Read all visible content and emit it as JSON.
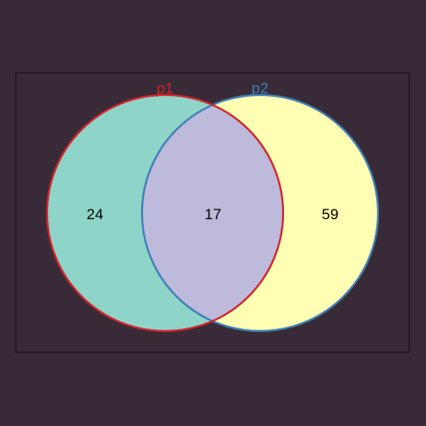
{
  "colors": {
    "background": "#382b37",
    "frame_stroke": "#1b1318",
    "p1_fill": "#8fd4c8",
    "p1_stroke": "#d4232d",
    "p2_fill": "#ffffb4",
    "p2_stroke": "#3f7fb8",
    "overlap_fill": "#bebadb"
  },
  "sets": [
    {
      "name": "p1",
      "only_count": "24"
    },
    {
      "name": "p2",
      "only_count": "59"
    }
  ],
  "intersection": {
    "count": "17"
  }
}
